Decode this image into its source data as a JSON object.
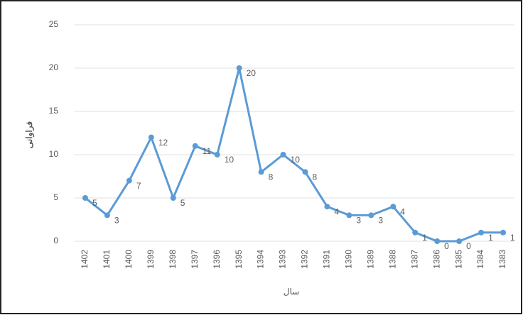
{
  "chart_data": {
    "type": "line",
    "y_label": "فراوانی",
    "x_label": "سال",
    "categories": [
      "1402",
      "1401",
      "1400",
      "1399",
      "1398",
      "1397",
      "1396",
      "1395",
      "1394",
      "1393",
      "1392",
      "1391",
      "1390",
      "1389",
      "1388",
      "1387",
      "1386",
      "1385",
      "1384",
      "1383"
    ],
    "values": [
      5,
      3,
      7,
      12,
      5,
      11,
      10,
      20,
      8,
      10,
      8,
      4,
      3,
      3,
      4,
      1,
      0,
      0,
      1,
      1
    ],
    "color": "#5b9bd5",
    "ylim": [
      0,
      25
    ],
    "yticks": [
      0,
      5,
      10,
      15,
      20,
      25
    ],
    "grid": true
  }
}
